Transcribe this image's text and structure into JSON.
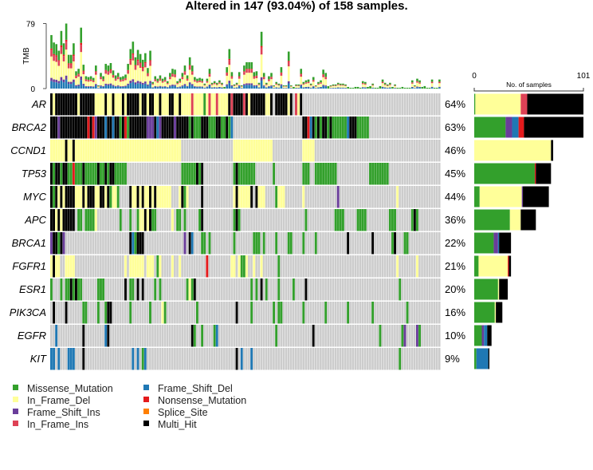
{
  "title": "Altered in 147 (93.04%) of 158 samples.",
  "colors": {
    "M": "#33a02c",
    "D": "#ffff99",
    "P": "#6a3d9a",
    "I": "#de4155",
    "F": "#1f78b4",
    "N": "#e41a1c",
    "S": "#ff7f00",
    "X": "#000000",
    ".": "#cccccc"
  },
  "chart_data": [
    {
      "type": "bar",
      "panel": "tmb",
      "ylabel": "TMB",
      "ylim": [
        0,
        79
      ],
      "yticks": [
        "0",
        "79"
      ],
      "values": [
        65,
        56,
        54,
        46,
        70,
        55,
        79,
        41,
        41,
        55,
        21,
        24,
        74,
        29,
        15,
        14,
        15,
        13,
        28,
        4,
        19,
        15,
        30,
        28,
        31,
        22,
        16,
        19,
        14,
        15,
        17,
        30,
        48,
        57,
        38,
        47,
        42,
        35,
        43,
        25,
        46,
        8,
        15,
        12,
        16,
        12,
        14,
        9,
        19,
        24,
        23,
        9,
        12,
        19,
        28,
        16,
        38,
        28,
        14,
        12,
        13,
        12,
        6,
        12,
        24,
        7,
        9,
        7,
        10,
        7,
        2,
        26,
        48,
        20,
        5,
        7,
        20,
        4,
        28,
        32,
        32,
        32,
        20,
        21,
        7,
        69,
        19,
        7,
        15,
        19,
        4,
        8,
        6,
        26,
        4,
        4,
        45,
        4,
        2,
        5,
        5,
        24,
        8,
        10,
        11,
        6,
        14,
        4,
        8,
        10,
        23,
        19,
        3,
        4,
        5,
        5,
        7,
        6,
        6,
        5,
        2,
        1,
        1,
        2,
        2,
        1,
        9,
        8,
        2,
        3,
        6,
        1,
        1,
        3,
        11,
        7,
        5,
        7,
        2,
        5,
        1,
        1,
        2,
        1,
        1,
        1,
        10,
        4,
        12,
        10,
        2,
        3,
        1,
        1,
        11,
        1,
        1,
        11
      ]
    },
    {
      "type": "heatmap",
      "panel": "oncoplot",
      "legend": [
        {
          "code": "M",
          "label": "Missense_Mutation"
        },
        {
          "code": "D",
          "label": "In_Frame_Del"
        },
        {
          "code": "P",
          "label": "Frame_Shift_Ins"
        },
        {
          "code": "I",
          "label": "In_Frame_Ins"
        },
        {
          "code": "F",
          "label": "Frame_Shift_Del"
        },
        {
          "code": "N",
          "label": "Nonsense_Mutation"
        },
        {
          "code": "S",
          "label": "Splice_Site"
        },
        {
          "code": "X",
          "label": "Multi_Hit"
        }
      ],
      "genes": [
        {
          "name": "AR",
          "pct": "64%",
          "cells": "XDXXXXXXXXXDXXXXXXDDDDXDDXDDDXDXXXXXDXXDXXDDXDDDXXDDXDDDDIDDDDMDIDDIDDDDXIXXXXIXDXXXXXXDDX.XXXXXDX.IDX........................................................"
        },
        {
          "name": "BRCA2",
          "pct": "63%",
          "cells": "XXXPXXXXXXXXXXXNXNPXXXFXXFXXMXNMXXXXXXXPPPXFPXXXXXPXXXXXMXMMMXXXMMMXXMMXMF............................XXNFXMXMXXMXMMMMMMFXXXMMMMM............................."
        },
        {
          "name": "CCND1",
          "pct": "46%",
          "cells": "DDDDDDXDDXDDDDDDDDDDDDDDDDDDDDDDDDDDDDDDDDDDDDDDDDDDD.....................DDDDDDDDDDDDDDDD............DDDDD..................................................."
        },
        {
          "name": "TP53",
          "pct": "45%",
          "cells": "XMXXMXXMMNMMMXMMMMMXMMXMXXMMMMM......................MMMMMMXMX............MXMMMMMMM.......M...........MMM..MMMMMMMMM.............MMMMMMMM....................."
        },
        {
          "name": "MYC",
          "pct": "44%",
          "cells": "XMXDXDXXXXDDDXDXXXDDXXDXMDDM....XDDXDXDDXDXDDDDDD...DXMD.....X............DXDDDDDX.XDDD....MDDD.......D.............P.......................D...................."
        },
        {
          "name": "APC",
          "pct": "36%",
          "cells": "XXDXDXXXXX.MM.MMMMD.........M...M..MDDXDXMM......D.MM.M.....MX............MXM..........................M...........MMMM.....MMMM.........MMM......MXM................."
        },
        {
          "name": "BRCA1",
          "pct": "22%",
          "cells": "PXXMXP..........................XFMXXX................P.XF...MM.M.........M.......MMM.M....M....MM....M....M............X.........X.......MX...MM.............."
        },
        {
          "name": "FGFR1",
          "pct": "21%",
          "cells": "DXDD..DDDD....................D.DDDDDD.DDD.MD....D..D..........N.........DD.DMMD..D..D......M...............................................D.......D...................."
        },
        {
          "name": "ESR1",
          "pct": "20%",
          "cells": "M...M.MMXMXMM......MMM........X.MM.X.X....M.M..........MDMX......................M.M.X.M....M.....M....X.....................................M.................."
        },
        {
          "name": "PIK3CA",
          "pct": "16%",
          "cells": ".X....X......MM....M..MXX.......M.......M....DM............M...............X.....M........M.MM........M........M........M.........M.............M............."
        },
        {
          "name": "EGFR",
          "pct": "10%",
          "cells": "..F..........X........FX.................................XM..M....MF.......................M..............X..........................M........MP....PM..........."
        },
        {
          "name": "KIT",
          "pct": "9%",
          "cells": "FF.F...FFF...X...................F.F.MF....................................X.F...F...........................................................M.........."
        }
      ]
    },
    {
      "type": "bar",
      "panel": "gene-counts",
      "orientation": "horizontal",
      "xlabel": "No. of samples",
      "xlim": [
        0,
        101
      ],
      "xticks": [
        "0",
        "101"
      ],
      "series_order": [
        "M",
        "D",
        "P",
        "F",
        "I",
        "N",
        "S",
        "X"
      ],
      "values": [
        {
          "M": 1,
          "D": 42,
          "I": 6,
          "X": 52
        },
        {
          "M": 29,
          "P": 6,
          "F": 6,
          "N": 5,
          "X": 55
        },
        {
          "D": 71,
          "X": 2
        },
        {
          "M": 56,
          "N": 1,
          "X": 14
        },
        {
          "M": 5,
          "D": 39,
          "P": 1,
          "X": 24
        },
        {
          "M": 33,
          "D": 10,
          "X": 14
        },
        {
          "M": 18,
          "P": 4,
          "F": 1,
          "X": 11
        },
        {
          "M": 4,
          "D": 27,
          "N": 1,
          "X": 2
        },
        {
          "M": 22,
          "D": 1,
          "X": 8
        },
        {
          "M": 19,
          "D": 1,
          "X": 6
        },
        {
          "M": 7,
          "P": 2,
          "F": 3,
          "X": 4
        },
        {
          "M": 2,
          "F": 11,
          "X": 1
        }
      ]
    }
  ]
}
